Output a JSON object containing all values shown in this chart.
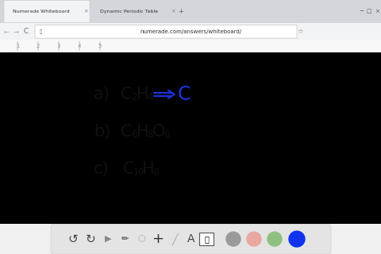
{
  "fig_bg": "#000000",
  "browser_tab_bg": "#d4d6db",
  "browser_tab_active_bg": "#f1f3f4",
  "browser_bar_bg": "#f1f3f4",
  "address_bar_bg": "#ffffff",
  "whiteboard_bg": "#ffffff",
  "whiteboard_light_bg": "#f8f8f8",
  "toolbar_bg": "#e8e8e8",
  "toolbar_pill_bg": "#e0e0e0",
  "tab1_text": "Numerade Whiteboard",
  "tab2_text": "Dynamic Periodic Table",
  "url_text": "numerade.com/answers/whiteboard/",
  "text_color": "#111111",
  "blue_color": "#1a35e8",
  "arrow_color": "#1a35e8",
  "gray_circle": "#9a9a9a",
  "pink_circle": "#e8a8a0",
  "green_circle": "#90c080",
  "blue_circle": "#1133ee",
  "line_a_label": "a)",
  "line_b_label": "b)",
  "line_c_label": "c)",
  "font_size": 15,
  "sub_font_size": 9
}
